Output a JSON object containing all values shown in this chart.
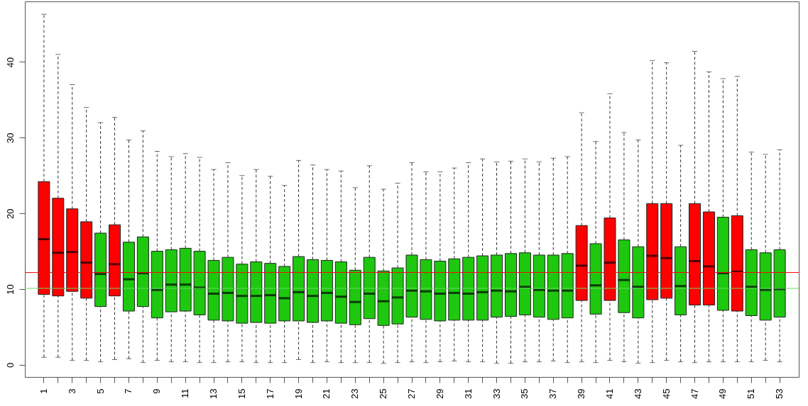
{
  "chart_data": {
    "type": "box",
    "categories": [
      "1",
      null,
      "3",
      null,
      "5",
      null,
      "7",
      null,
      "9",
      null,
      "11",
      null,
      "13",
      null,
      "15",
      null,
      "17",
      null,
      "19",
      null,
      "21",
      null,
      "23",
      null,
      "25",
      null,
      "27",
      null,
      "29",
      null,
      "31",
      null,
      "33",
      null,
      "35",
      null,
      "37",
      null,
      "39",
      null,
      "41",
      null,
      "43",
      null,
      "45",
      null,
      "47",
      null,
      "49",
      null,
      "51",
      null,
      "53"
    ],
    "boxes": [
      {
        "low": 1.0,
        "q1": 9.3,
        "median": 16.6,
        "q3": 24.2,
        "high": 46.3
      },
      {
        "low": 1.0,
        "q1": 9.1,
        "median": 14.8,
        "q3": 22.0,
        "high": 41.0
      },
      {
        "low": 0.6,
        "q1": 9.7,
        "median": 14.9,
        "q3": 20.6,
        "high": 37.0
      },
      {
        "low": 0.6,
        "q1": 8.8,
        "median": 13.5,
        "q3": 18.9,
        "high": 34.0
      },
      {
        "low": 0.4,
        "q1": 7.7,
        "median": 12.0,
        "q3": 17.4,
        "high": 32.0
      },
      {
        "low": 0.7,
        "q1": 9.1,
        "median": 13.3,
        "q3": 18.5,
        "high": 32.7
      },
      {
        "low": 0.8,
        "q1": 7.1,
        "median": 11.3,
        "q3": 16.2,
        "high": 29.7
      },
      {
        "low": 0.3,
        "q1": 7.7,
        "median": 12.1,
        "q3": 16.9,
        "high": 30.9
      },
      {
        "low": 0.6,
        "q1": 6.2,
        "median": 9.9,
        "q3": 15.0,
        "high": 28.2
      },
      {
        "low": 0.4,
        "q1": 7.0,
        "median": 10.6,
        "q3": 15.2,
        "high": 27.5
      },
      {
        "low": 0.4,
        "q1": 7.1,
        "median": 10.6,
        "q3": 15.4,
        "high": 27.9
      },
      {
        "low": 0.3,
        "q1": 6.6,
        "median": 10.2,
        "q3": 15.0,
        "high": 27.4
      },
      {
        "low": 0.3,
        "q1": 5.9,
        "median": 9.4,
        "q3": 13.8,
        "high": 25.8
      },
      {
        "low": 0.4,
        "q1": 5.8,
        "median": 9.5,
        "q3": 14.2,
        "high": 26.7
      },
      {
        "low": 0.4,
        "q1": 5.5,
        "median": 9.1,
        "q3": 13.3,
        "high": 25.0
      },
      {
        "low": 0.3,
        "q1": 5.6,
        "median": 9.1,
        "q3": 13.6,
        "high": 25.8
      },
      {
        "low": 0.3,
        "q1": 5.5,
        "median": 9.2,
        "q3": 13.4,
        "high": 24.9
      },
      {
        "low": 0.3,
        "q1": 5.8,
        "median": 8.8,
        "q3": 13.0,
        "high": 23.7
      },
      {
        "low": 0.7,
        "q1": 5.8,
        "median": 9.6,
        "q3": 14.3,
        "high": 27.0
      },
      {
        "low": 0.3,
        "q1": 5.6,
        "median": 9.1,
        "q3": 13.9,
        "high": 26.4
      },
      {
        "low": 0.4,
        "q1": 5.8,
        "median": 9.5,
        "q3": 13.8,
        "high": 25.8
      },
      {
        "low": 0.3,
        "q1": 5.5,
        "median": 9.0,
        "q3": 13.6,
        "high": 25.6
      },
      {
        "low": 0.3,
        "q1": 5.3,
        "median": 8.3,
        "q3": 12.5,
        "high": 23.4
      },
      {
        "low": 0.3,
        "q1": 6.1,
        "median": 9.4,
        "q3": 14.2,
        "high": 26.3
      },
      {
        "low": 0.2,
        "q1": 5.2,
        "median": 8.4,
        "q3": 12.4,
        "high": 23.2
      },
      {
        "low": 0.3,
        "q1": 5.4,
        "median": 8.9,
        "q3": 12.8,
        "high": 24.0
      },
      {
        "low": 0.4,
        "q1": 6.3,
        "median": 9.8,
        "q3": 14.5,
        "high": 26.7
      },
      {
        "low": 0.3,
        "q1": 6.0,
        "median": 9.7,
        "q3": 13.9,
        "high": 25.5
      },
      {
        "low": 0.4,
        "q1": 5.8,
        "median": 9.4,
        "q3": 13.7,
        "high": 25.5
      },
      {
        "low": 0.5,
        "q1": 5.9,
        "median": 9.5,
        "q3": 14.0,
        "high": 26.0
      },
      {
        "low": 0.4,
        "q1": 5.9,
        "median": 9.4,
        "q3": 14.2,
        "high": 26.7
      },
      {
        "low": 0.4,
        "q1": 5.9,
        "median": 9.6,
        "q3": 14.4,
        "high": 27.2
      },
      {
        "low": 0.2,
        "q1": 6.3,
        "median": 9.8,
        "q3": 14.5,
        "high": 26.8
      },
      {
        "low": 0.2,
        "q1": 6.4,
        "median": 9.7,
        "q3": 14.7,
        "high": 26.9
      },
      {
        "low": 0.4,
        "q1": 6.6,
        "median": 10.3,
        "q3": 14.8,
        "high": 27.2
      },
      {
        "low": 0.4,
        "q1": 6.3,
        "median": 9.9,
        "q3": 14.5,
        "high": 26.8
      },
      {
        "low": 0.5,
        "q1": 6.0,
        "median": 9.8,
        "q3": 14.5,
        "high": 27.3
      },
      {
        "low": 0.3,
        "q1": 6.2,
        "median": 9.8,
        "q3": 14.7,
        "high": 27.5
      },
      {
        "low": 0.4,
        "q1": 8.5,
        "median": 13.1,
        "q3": 18.4,
        "high": 33.3
      },
      {
        "low": 0.3,
        "q1": 6.7,
        "median": 10.5,
        "q3": 16.0,
        "high": 29.5
      },
      {
        "low": 0.6,
        "q1": 8.5,
        "median": 13.5,
        "q3": 19.4,
        "high": 35.8
      },
      {
        "low": 0.4,
        "q1": 6.9,
        "median": 11.2,
        "q3": 16.5,
        "high": 30.7
      },
      {
        "low": 0.2,
        "q1": 6.2,
        "median": 10.3,
        "q3": 15.6,
        "high": 29.7
      },
      {
        "low": 0.3,
        "q1": 8.6,
        "median": 14.4,
        "q3": 21.3,
        "high": 40.2
      },
      {
        "low": 0.6,
        "q1": 8.8,
        "median": 14.1,
        "q3": 21.3,
        "high": 39.9
      },
      {
        "low": 0.4,
        "q1": 6.6,
        "median": 10.4,
        "q3": 15.6,
        "high": 29.0
      },
      {
        "low": 0.3,
        "q1": 7.9,
        "median": 13.7,
        "q3": 21.3,
        "high": 41.4
      },
      {
        "low": 0.4,
        "q1": 7.9,
        "median": 13.0,
        "q3": 20.2,
        "high": 38.7
      },
      {
        "low": 0.4,
        "q1": 7.2,
        "median": 12.1,
        "q3": 19.5,
        "high": 37.8
      },
      {
        "low": 0.4,
        "q1": 7.1,
        "median": 12.3,
        "q3": 19.7,
        "high": 38.1
      },
      {
        "low": 0.4,
        "q1": 6.5,
        "median": 10.3,
        "q3": 15.2,
        "high": 28.1
      },
      {
        "low": 0.6,
        "q1": 5.9,
        "median": 9.9,
        "q3": 14.8,
        "high": 27.8
      },
      {
        "low": 0.4,
        "q1": 6.3,
        "median": 10.0,
        "q3": 15.2,
        "high": 28.4
      }
    ],
    "colors": [
      "#fe0000",
      "#fe0000",
      "#fe0000",
      "#fe0000",
      "#1ec80e",
      "#fe0000",
      "#1ec80e",
      "#1ec80e",
      "#1ec80e",
      "#1ec80e",
      "#1ec80e",
      "#1ec80e",
      "#1ec80e",
      "#1ec80e",
      "#1ec80e",
      "#1ec80e",
      "#1ec80e",
      "#1ec80e",
      "#1ec80e",
      "#1ec80e",
      "#1ec80e",
      "#1ec80e",
      "#1ec80e",
      "#1ec80e",
      "#1ec80e",
      "#1ec80e",
      "#1ec80e",
      "#1ec80e",
      "#1ec80e",
      "#1ec80e",
      "#1ec80e",
      "#1ec80e",
      "#1ec80e",
      "#1ec80e",
      "#1ec80e",
      "#1ec80e",
      "#1ec80e",
      "#1ec80e",
      "#fe0000",
      "#1ec80e",
      "#fe0000",
      "#1ec80e",
      "#1ec80e",
      "#fe0000",
      "#fe0000",
      "#1ec80e",
      "#fe0000",
      "#fe0000",
      "#1ec80e",
      "#fe0000",
      "#1ec80e",
      "#1ec80e",
      "#1ec80e"
    ],
    "ylim": [
      -1.6,
      48
    ],
    "yticks": [
      0,
      10,
      20,
      30,
      40
    ],
    "grid": false,
    "ref_lines": [
      {
        "axis": "y",
        "value": 12.2,
        "color": "#ff0000"
      },
      {
        "axis": "y",
        "value": 10.1,
        "color": "#66d966"
      }
    ]
  }
}
